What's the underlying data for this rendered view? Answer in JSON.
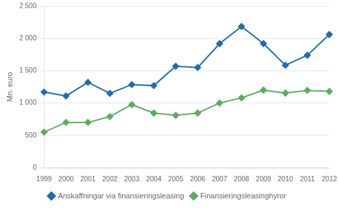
{
  "chart_data": {
    "type": "line",
    "ylabel": "Mn. euro",
    "categories": [
      "1999",
      "2000",
      "2001",
      "2002",
      "2003",
      "2004",
      "2005",
      "2006",
      "2007",
      "2008",
      "2009",
      "2010",
      "2011",
      "2012"
    ],
    "series": [
      {
        "name": "Anskaffningar via finansieringsleasing",
        "color": "#1F6CB0",
        "marker": "diamond",
        "values": [
          1170,
          1110,
          1320,
          1150,
          1285,
          1270,
          1570,
          1550,
          1920,
          2185,
          1920,
          1585,
          1740,
          2060
        ]
      },
      {
        "name": "Finansieringsleasinghyror",
        "color": "#5BAD5E",
        "marker": "diamond",
        "values": [
          550,
          700,
          700,
          790,
          975,
          845,
          810,
          845,
          1000,
          1080,
          1200,
          1155,
          1195,
          1180
        ]
      }
    ],
    "ylim": [
      0,
      2500
    ],
    "yticks": [
      0,
      500,
      {
        "value": 1000,
        "label": "1 000"
      },
      {
        "value": 1500,
        "label": "1 500"
      },
      {
        "value": 2000,
        "label": "2 000"
      },
      {
        "value": 2500,
        "label": "2 500"
      }
    ],
    "grid": "y",
    "legend": "bottom"
  }
}
